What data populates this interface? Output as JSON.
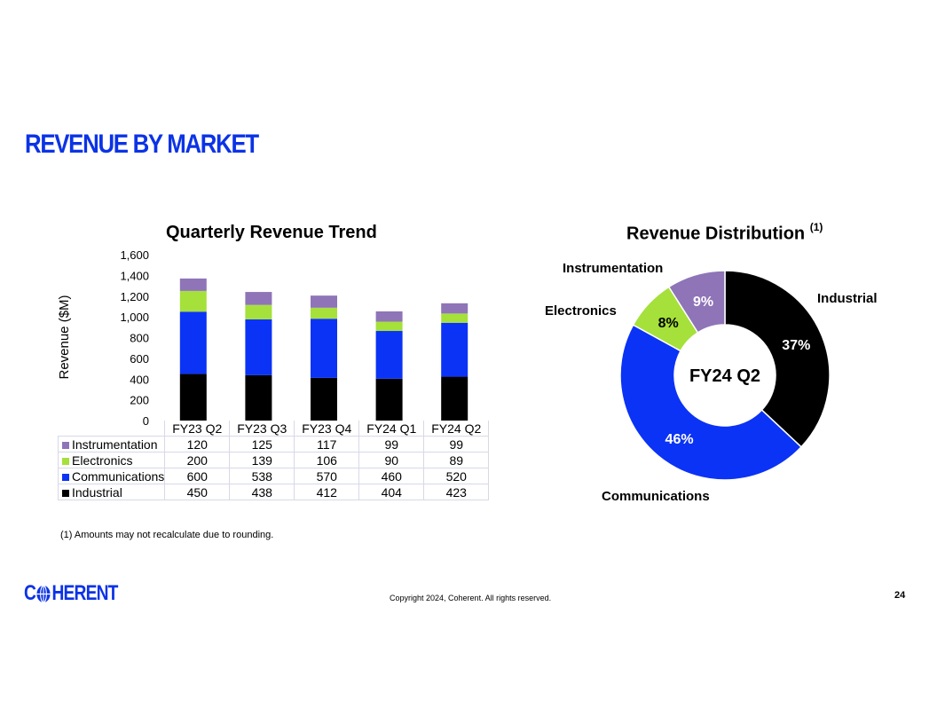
{
  "page": {
    "title": "REVENUE BY MARKET",
    "footnote": "(1)  Amounts may not recalculate due to rounding.",
    "copyright": "Copyright 2024, Coherent. All rights reserved.",
    "page_number": "24",
    "logo_left": "C",
    "logo_right": "HERENT",
    "logo_icon": "globe-icon",
    "brand_color": "#0b33e6"
  },
  "chart_data": [
    {
      "type": "bar",
      "stacked": true,
      "title": "Quarterly Revenue Trend",
      "ylabel": "Revenue ($M)",
      "ylim": [
        0,
        1600
      ],
      "yticks": [
        "0",
        "200",
        "400",
        "600",
        "800",
        "1,000",
        "1,200",
        "1,400",
        "1,600"
      ],
      "categories": [
        "FY23 Q2",
        "FY23 Q3",
        "FY23 Q4",
        "FY24 Q1",
        "FY24 Q2"
      ],
      "series": [
        {
          "name": "Instrumentation",
          "color": "#8f74b8",
          "values": [
            120,
            125,
            117,
            99,
            99
          ]
        },
        {
          "name": "Electronics",
          "color": "#a6e03b",
          "values": [
            200,
            139,
            106,
            90,
            89
          ]
        },
        {
          "name": "Communications",
          "color": "#0b33f5",
          "values": [
            600,
            538,
            570,
            460,
            520
          ]
        },
        {
          "name": "Industrial",
          "color": "#000000",
          "values": [
            450,
            438,
            412,
            404,
            423
          ]
        }
      ],
      "legend": "table-below"
    },
    {
      "type": "pie",
      "donut": true,
      "title": "Revenue Distribution",
      "title_sup": "(1)",
      "center_label": "FY24 Q2",
      "slices": [
        {
          "name": "Industrial",
          "value": 37,
          "label": "37%",
          "color": "#000000",
          "label_color": "#ffffff"
        },
        {
          "name": "Communications",
          "value": 46,
          "label": "46%",
          "color": "#0b33f5",
          "label_color": "#ffffff"
        },
        {
          "name": "Electronics",
          "value": 8,
          "label": "8%",
          "color": "#a6e03b",
          "label_color": "#000000"
        },
        {
          "name": "Instrumentation",
          "value": 9,
          "label": "9%",
          "color": "#8f74b8",
          "label_color": "#ffffff"
        }
      ]
    }
  ]
}
